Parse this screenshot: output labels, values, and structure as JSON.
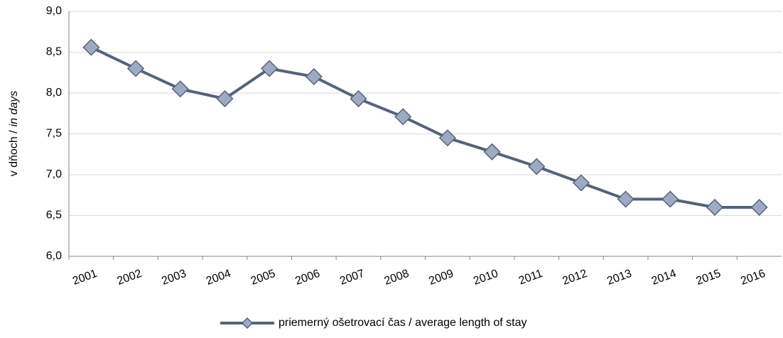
{
  "chart_data": {
    "type": "line",
    "ylabel": [
      "v dňoch /",
      "in days"
    ],
    "categories": [
      "2001",
      "2002",
      "2003",
      "2004",
      "2005",
      "2006",
      "2007",
      "2008",
      "2009",
      "2010",
      "2011",
      "2012",
      "2013",
      "2014",
      "2015",
      "2016"
    ],
    "series": [
      {
        "name": "priemerný ošetrovací čas / average length of stay",
        "color": "#56627a",
        "marker_color": "#9daac2",
        "values": [
          8.56,
          8.3,
          8.05,
          7.93,
          8.3,
          8.2,
          7.93,
          7.71,
          7.45,
          7.28,
          7.1,
          6.9,
          6.7,
          6.7,
          6.6,
          6.6
        ]
      }
    ],
    "ylim": [
      6.0,
      9.0
    ],
    "yticks": [
      {
        "value": 6.0,
        "label": "6,0"
      },
      {
        "value": 6.5,
        "label": "6,5"
      },
      {
        "value": 7.0,
        "label": "7,0"
      },
      {
        "value": 7.5,
        "label": "7,5"
      },
      {
        "value": 8.0,
        "label": "8,0"
      },
      {
        "value": 8.5,
        "label": "8,5"
      },
      {
        "value": 9.0,
        "label": "9,0"
      }
    ],
    "grid": true,
    "legend": "bottom"
  }
}
